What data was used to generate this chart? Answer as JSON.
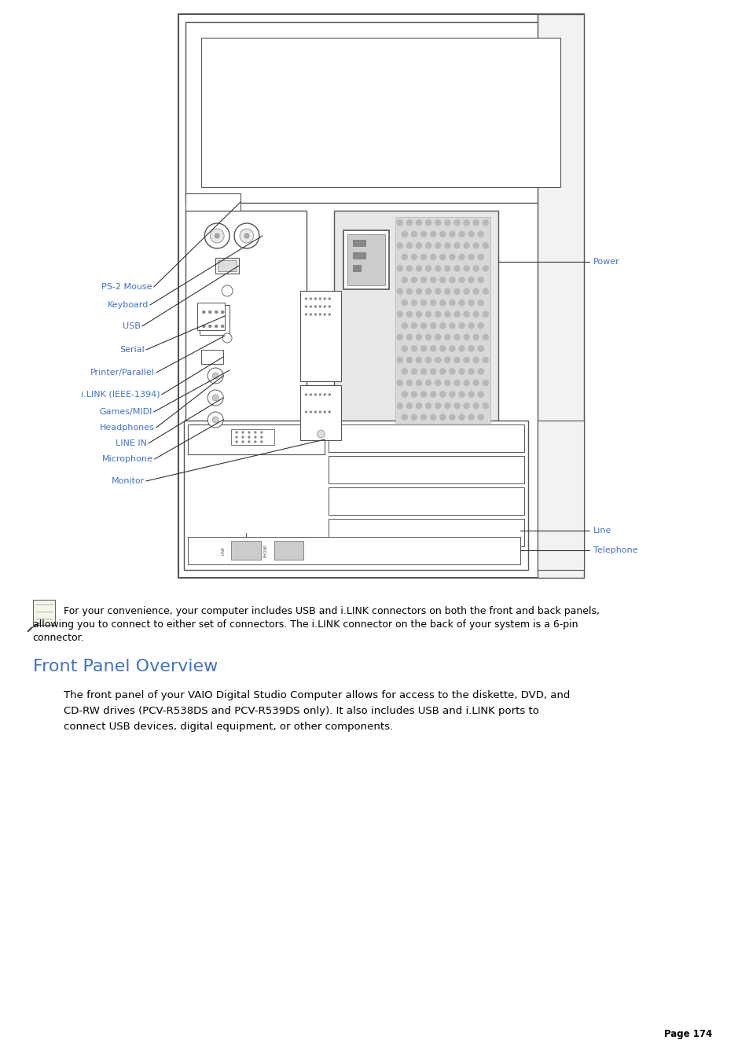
{
  "bg_color": "#ffffff",
  "label_color": "#4472c4",
  "text_color": "#000000",
  "bc": "#555555",
  "page_text": "Page 174",
  "note_text": "  For your convenience, your computer includes USB and i.LINK connectors on both the front and back panels,\nallowing you to connect to either set of connectors. The i.LINK connector on the back of your system is a 6-pin\nconnector.",
  "section_title": "Front Panel Overview",
  "body_text": "    The front panel of your VAIO Digital Studio Computer allows for access to the diskette, DVD, and\n    CD-RW drives (PCV-R538DS and PCV-R539DS only). It also includes USB and i.LINK ports to\n    connect USB devices, digital equipment, or other components."
}
